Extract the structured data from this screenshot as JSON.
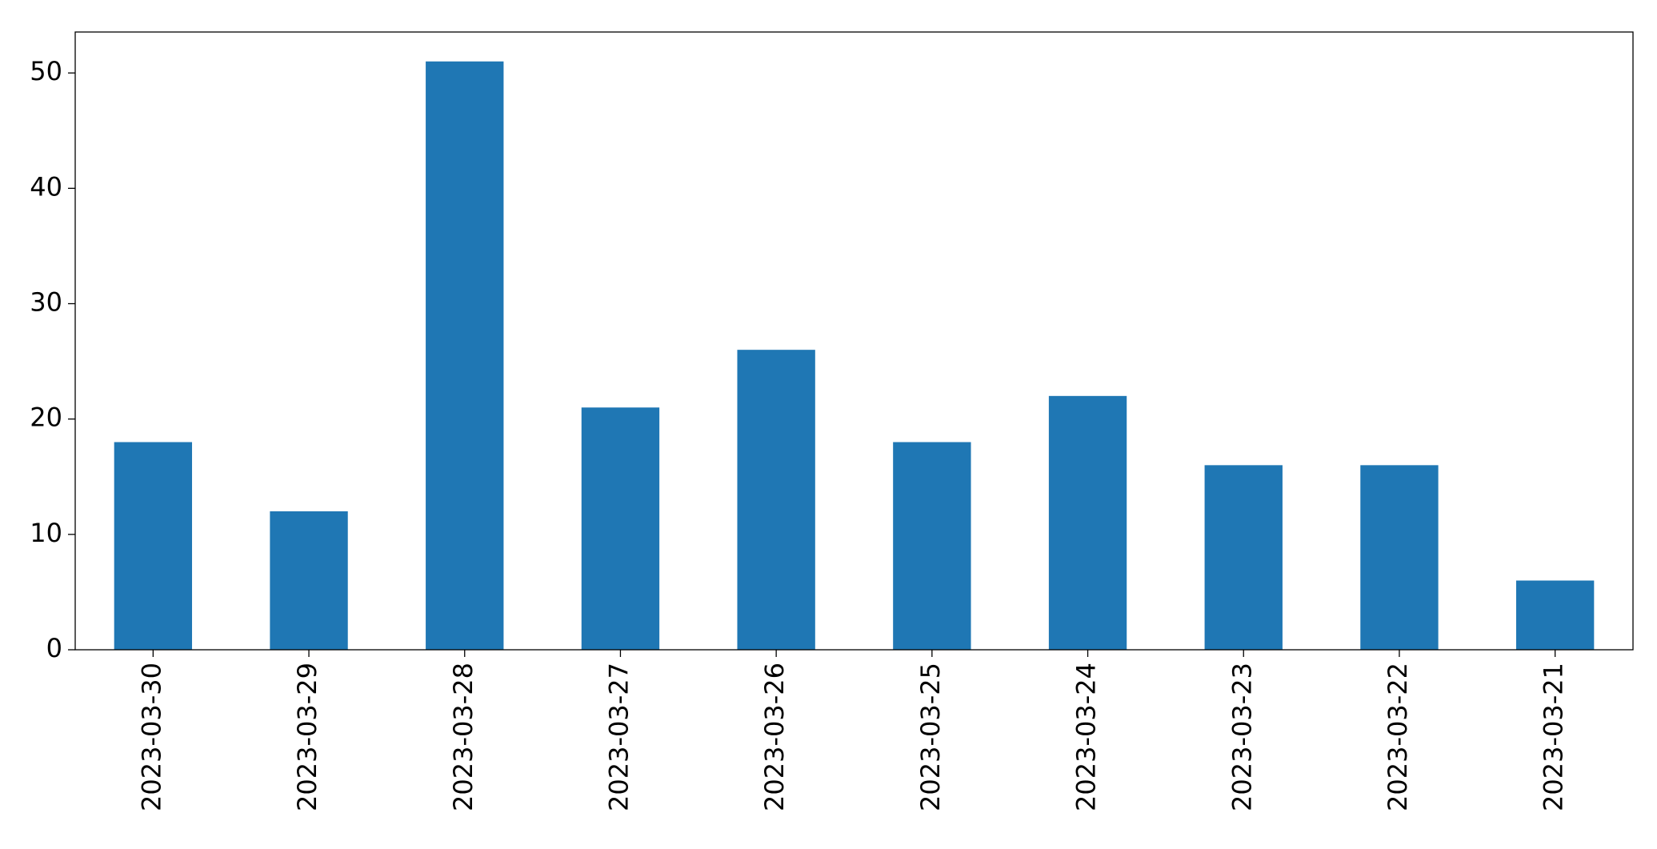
{
  "chart_data": {
    "type": "bar",
    "categories": [
      "2023-03-30",
      "2023-03-29",
      "2023-03-28",
      "2023-03-27",
      "2023-03-26",
      "2023-03-25",
      "2023-03-24",
      "2023-03-23",
      "2023-03-22",
      "2023-03-21"
    ],
    "values": [
      18,
      12,
      51,
      21,
      26,
      18,
      22,
      16,
      16,
      6
    ],
    "color": "#1f77b4",
    "ylim": [
      0,
      53.55
    ],
    "yticks": [
      0,
      10,
      20,
      30,
      40,
      50
    ],
    "grid": false
  }
}
